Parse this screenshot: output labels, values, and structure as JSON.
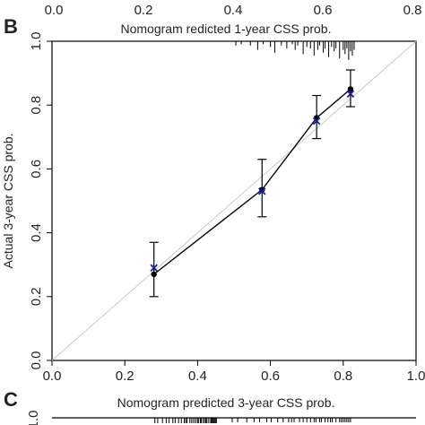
{
  "panels": {
    "B": "B",
    "C": "C"
  },
  "top_ticks": [
    "0.0",
    "0.2",
    "0.4",
    "0.6",
    "0.8"
  ],
  "chart_data": {
    "type": "line",
    "xlabel": "Nomogram   redicted 1-year CSS prob.",
    "ylabel": "Actual 3-year CSS prob.",
    "xlim": [
      0,
      1
    ],
    "ylim": [
      0,
      1
    ],
    "x_ticks": [
      "0.0",
      "0.2",
      "0.4",
      "0.6",
      "0.8",
      "1.0"
    ],
    "y_ticks": [
      "0.0",
      "0.2",
      "0.4",
      "0.6",
      "0.8",
      "1.0"
    ],
    "reference_line": {
      "from": [
        0,
        0
      ],
      "to": [
        1,
        1
      ],
      "color": "#c8c8c8"
    },
    "observed": {
      "x": [
        0.28,
        0.577,
        0.727,
        0.82
      ],
      "y": [
        0.27,
        0.535,
        0.76,
        0.85
      ],
      "lower": [
        0.2,
        0.45,
        0.695,
        0.795
      ],
      "upper": [
        0.37,
        0.63,
        0.83,
        0.91
      ],
      "color": "#000000"
    },
    "bias_corrected": {
      "x": [
        0.28,
        0.577,
        0.727,
        0.82
      ],
      "y": [
        0.29,
        0.53,
        0.75,
        0.835
      ],
      "color": "#1a1aa6"
    },
    "rug": [
      0.505,
      0.52,
      0.545,
      0.565,
      0.58,
      0.6,
      0.612,
      0.63,
      0.645,
      0.66,
      0.668,
      0.675,
      0.69,
      0.7,
      0.71,
      0.72,
      0.73,
      0.735,
      0.745,
      0.75,
      0.76,
      0.768,
      0.775,
      0.78,
      0.79,
      0.8,
      0.805,
      0.81,
      0.815,
      0.82,
      0.825,
      0.83
    ],
    "rug_heights": [
      0.03,
      0.02,
      0.03,
      0.06,
      0.02,
      0.04,
      0.08,
      0.03,
      0.05,
      0.02,
      0.06,
      0.03,
      0.09,
      0.04,
      0.05,
      0.1,
      0.06,
      0.03,
      0.08,
      0.05,
      0.11,
      0.04,
      0.07,
      0.05,
      0.12,
      0.06,
      0.09,
      0.05,
      0.13,
      0.07,
      0.1,
      0.06
    ]
  },
  "panel_c": {
    "xlabel": "Nomogram predicted 3-year CSS prob.",
    "y_top_tick": "1.0"
  }
}
